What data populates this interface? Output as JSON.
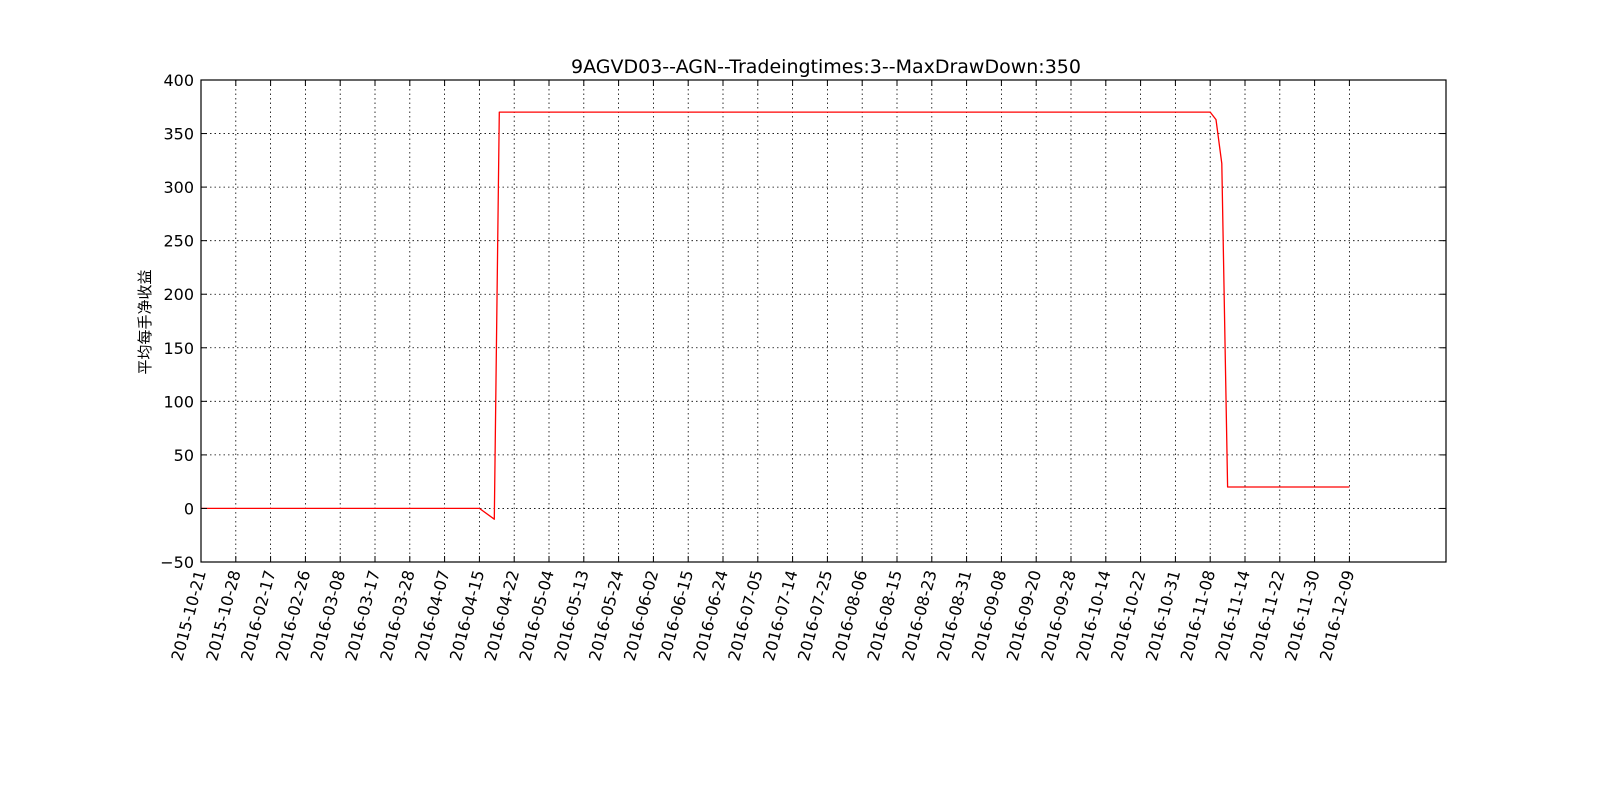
{
  "chart_data": {
    "type": "line",
    "title": "9AGVD03--AGN--Tradeingtimes:3--MaxDrawDown:350",
    "xlabel": "",
    "ylabel": "平均每手净收益",
    "ylim": [
      -50,
      400
    ],
    "yticks": [
      -50,
      0,
      50,
      100,
      150,
      200,
      250,
      300,
      350,
      400
    ],
    "ytick_labels": [
      "−50",
      "0",
      "50",
      "100",
      "150",
      "200",
      "250",
      "300",
      "350",
      "400"
    ],
    "xticks": [
      "2015-10-21",
      "2015-10-28",
      "2016-02-17",
      "2016-02-26",
      "2016-03-08",
      "2016-03-17",
      "2016-03-28",
      "2016-04-07",
      "2016-04-15",
      "2016-04-22",
      "2016-05-04",
      "2016-05-13",
      "2016-05-24",
      "2016-06-02",
      "2016-06-15",
      "2016-06-24",
      "2016-07-05",
      "2016-07-14",
      "2016-07-25",
      "2016-08-06",
      "2016-08-15",
      "2016-08-23",
      "2016-08-31",
      "2016-09-08",
      "2016-09-20",
      "2016-09-28",
      "2016-10-14",
      "2016-10-22",
      "2016-10-31",
      "2016-11-08",
      "2016-11-14",
      "2016-11-22",
      "2016-11-30",
      "2016-12-09"
    ],
    "grid": true,
    "series": [
      {
        "color": "#ff0000",
        "points": [
          {
            "x": "2015-10-21",
            "y": 0
          },
          {
            "x": "2016-04-15",
            "y": 0
          },
          {
            "x": "2016-04-18",
            "y": -10
          },
          {
            "x": "2016-04-19",
            "y": 370
          },
          {
            "x": "2016-11-08",
            "y": 370
          },
          {
            "x": "2016-11-09",
            "y": 363
          },
          {
            "x": "2016-11-10",
            "y": 322
          },
          {
            "x": "2016-11-11",
            "y": 20
          },
          {
            "x": "2016-12-09",
            "y": 20
          }
        ]
      }
    ]
  }
}
